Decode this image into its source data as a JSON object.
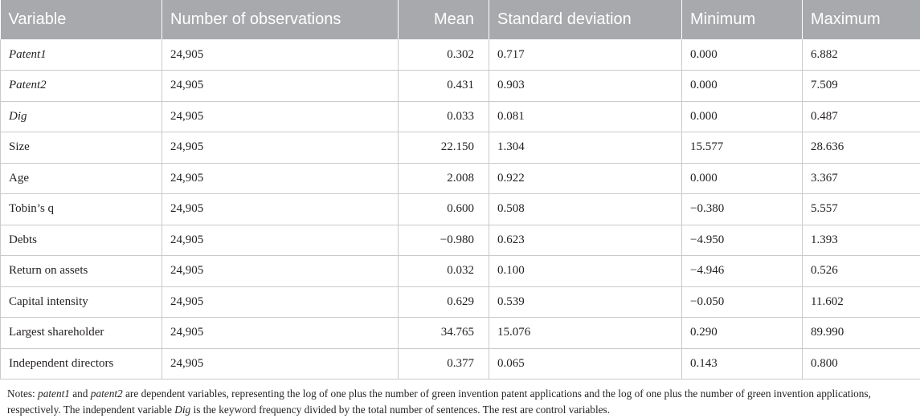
{
  "table": {
    "headers": [
      "Variable",
      "Number of observations",
      "Mean",
      "Standard deviation",
      "Minimum",
      "Maximum"
    ],
    "rows": [
      {
        "variable": "Patent1",
        "italic": true,
        "observations": "24,905",
        "mean": "0.302",
        "sd": "0.717",
        "min": "0.000",
        "max": "6.882"
      },
      {
        "variable": "Patent2",
        "italic": true,
        "observations": "24,905",
        "mean": "0.431",
        "sd": "0.903",
        "min": "0.000",
        "max": "7.509"
      },
      {
        "variable": "Dig",
        "italic": true,
        "observations": "24,905",
        "mean": "0.033",
        "sd": "0.081",
        "min": "0.000",
        "max": "0.487"
      },
      {
        "variable": "Size",
        "italic": false,
        "observations": "24,905",
        "mean": "22.150",
        "sd": "1.304",
        "min": "15.577",
        "max": "28.636"
      },
      {
        "variable": "Age",
        "italic": false,
        "observations": "24,905",
        "mean": "2.008",
        "sd": "0.922",
        "min": "0.000",
        "max": "3.367"
      },
      {
        "variable": "Tobin’s q",
        "italic": false,
        "observations": "24,905",
        "mean": "0.600",
        "sd": "0.508",
        "min": "−0.380",
        "max": "5.557"
      },
      {
        "variable": "Debts",
        "italic": false,
        "observations": "24,905",
        "mean": "−0.980",
        "sd": "0.623",
        "min": "−4.950",
        "max": "1.393"
      },
      {
        "variable": "Return on assets",
        "italic": false,
        "observations": "24,905",
        "mean": "0.032",
        "sd": "0.100",
        "min": "−4.946",
        "max": "0.526"
      },
      {
        "variable": "Capital intensity",
        "italic": false,
        "observations": "24,905",
        "mean": "0.629",
        "sd": "0.539",
        "min": "−0.050",
        "max": "11.602"
      },
      {
        "variable": "Largest shareholder",
        "italic": false,
        "observations": "24,905",
        "mean": "34.765",
        "sd": "15.076",
        "min": "0.290",
        "max": "89.990"
      },
      {
        "variable": "Independent directors",
        "italic": false,
        "observations": "24,905",
        "mean": "0.377",
        "sd": "0.065",
        "min": "0.143",
        "max": "0.800"
      }
    ]
  },
  "notes": {
    "prefix": "Notes: ",
    "term1": "patent1",
    "and": " and ",
    "term2": "patent2",
    "middle": " are dependent variables, representing the log of one plus the number of green invention patent applications and the log of one plus the number of green invention applications, respectively. The independent variable ",
    "term3": "Dig",
    "suffix": " is the keyword frequency divided by the total number of sentences. The rest are control variables."
  },
  "colors": {
    "header_bg": "#a7a9ac",
    "header_text": "#ffffff",
    "grid": "#c9cacc",
    "text": "#231f20"
  }
}
